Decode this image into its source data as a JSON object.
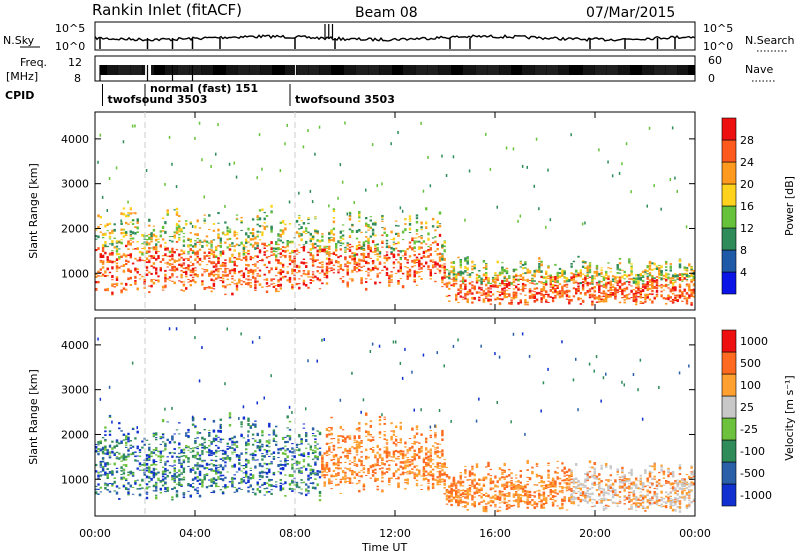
{
  "header": {
    "station": "Rankin Inlet (fitACF)",
    "beam": "Beam 08",
    "date": "07/Mar/2015"
  },
  "strips": {
    "nsky_label": "N.Sky",
    "nsearch_label": "N.Search",
    "nsky_ticks": [
      "10^5",
      "10^0"
    ],
    "nsearch_ticks": [
      "10^5",
      "10^0"
    ],
    "freq_label_line1": "Freq.",
    "freq_label_line2": "[MHz]",
    "freq_ticks": [
      "12",
      "8"
    ],
    "nave_label": "Nave",
    "nave_ticks": [
      "60",
      "0"
    ],
    "cpid_label": "CPID",
    "cpid_entries": [
      {
        "t": 0.5,
        "label": "twofsound 3503"
      },
      {
        "t": 2.2,
        "label": "normal (fast) 151"
      },
      {
        "t": 8.0,
        "label": "twofsound 3503"
      }
    ]
  },
  "chart_data": [
    {
      "type": "heatmap",
      "name": "power",
      "ylabel": "Slant Range [km]",
      "yticks": [
        1000,
        2000,
        3000,
        4000
      ],
      "ylim": [
        180,
        4600
      ],
      "xlim": [
        0,
        24
      ],
      "xticks": [
        "00:00",
        "04:00",
        "08:00",
        "12:00",
        "16:00",
        "20:00",
        "00:00"
      ],
      "xtick_values": [
        0,
        4,
        8,
        12,
        16,
        20,
        24
      ],
      "xlabel": "Time UT",
      "colorbar": {
        "label": "Power [dB]",
        "labels": [
          "4",
          "8",
          "12",
          "16",
          "20",
          "24",
          "28"
        ],
        "colors": [
          "#0a14e6",
          "#1e5aa8",
          "#2f8c5a",
          "#66c23a",
          "#ffd21e",
          "#ff9a1e",
          "#ff5a1e",
          "#ee1010"
        ]
      }
    },
    {
      "type": "heatmap",
      "name": "velocity",
      "ylabel": "Slant Range [km]",
      "yticks": [
        1000,
        2000,
        3000,
        4000
      ],
      "ylim": [
        180,
        4600
      ],
      "xlim": [
        0,
        24
      ],
      "xticks": [
        "00:00",
        "04:00",
        "08:00",
        "12:00",
        "16:00",
        "20:00",
        "00:00"
      ],
      "xtick_values": [
        0,
        4,
        8,
        12,
        16,
        20,
        24
      ],
      "xlabel": "Time UT",
      "colorbar": {
        "label": "Velocity [m s⁻¹]",
        "labels": [
          "1000",
          "500",
          "100",
          "25",
          "-25",
          "-100",
          "-500",
          "-1000"
        ],
        "colors": [
          "#1030d0",
          "#2a60a8",
          "#2f8c5a",
          "#6cc23c",
          "#c8c8c8",
          "#ffa030",
          "#ff6a20",
          "#ee1010"
        ]
      }
    }
  ]
}
